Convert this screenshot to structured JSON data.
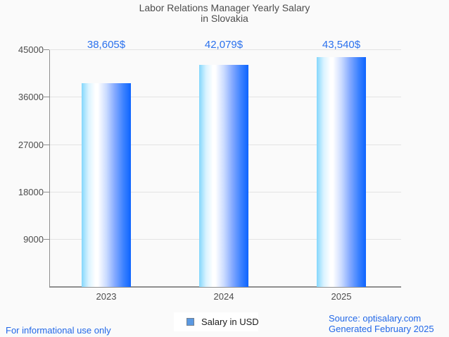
{
  "title": {
    "line1": "Labor Relations Manager Yearly Salary",
    "line2": "in Slovakia"
  },
  "chart_data": {
    "type": "bar",
    "title": "Labor Relations Manager Yearly Salary in Slovakia",
    "categories": [
      "2023",
      "2024",
      "2025"
    ],
    "series": [
      {
        "name": "Salary in USD",
        "values": [
          38605,
          42079,
          43540
        ]
      }
    ],
    "value_labels": [
      "38,605$",
      "42,079$",
      "43,540$"
    ],
    "ylim": [
      0,
      45000
    ],
    "yticks": [
      9000,
      18000,
      27000,
      36000,
      45000
    ],
    "grid": true,
    "legend_position": "bottom"
  },
  "legend": {
    "label": "Salary in USD",
    "marker_color": "#5b99e2"
  },
  "footer": {
    "disclaimer": "For informational use only",
    "source": "Source: optisalary.com",
    "generated": "Generated February 2025"
  },
  "colors": {
    "background": "#fafafa",
    "title_text": "#4d4d4d",
    "axis": "#8f8f8f",
    "grid": "#e3e3e3",
    "value_label_blue": "#2b71ed",
    "footer_blue": "#2268e8",
    "bar_gradient_left": "#84d7fc",
    "bar_gradient_mid": "#ffffff",
    "bar_gradient_right": "#0d64ff"
  }
}
